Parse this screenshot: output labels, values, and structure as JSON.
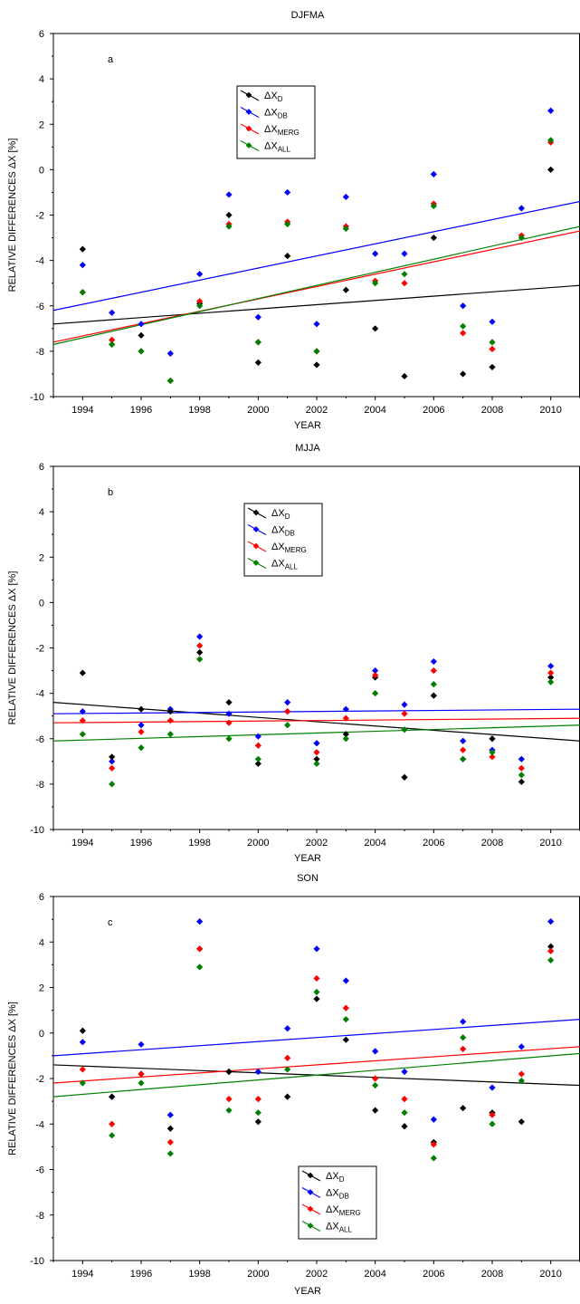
{
  "chart_data": [
    {
      "type": "scatter",
      "title": "DJFMA",
      "panel_label": "a",
      "xlabel": "YEAR",
      "ylabel": "RELATIVE DIFFERENCES ΔX [%]",
      "xlim": [
        1993,
        2011
      ],
      "ylim": [
        -10,
        6
      ],
      "x_ticks": [
        1994,
        1996,
        1998,
        2000,
        2002,
        2004,
        2006,
        2008,
        2010
      ],
      "y_ticks": [
        -10,
        -8,
        -6,
        -4,
        -2,
        0,
        2,
        4,
        6
      ],
      "legend_position": "upper-center",
      "series": [
        {
          "name": "ΔX_D",
          "color": "#000000",
          "x": [
            1994,
            1995,
            1996,
            1997,
            1998,
            1999,
            2000,
            2001,
            2002,
            2003,
            2004,
            2005,
            2006,
            2007,
            2008,
            2010
          ],
          "y": [
            -3.5,
            -7.7,
            -7.3,
            -9.3,
            -5.9,
            -2.0,
            -8.5,
            -3.8,
            -8.6,
            -5.3,
            -7.0,
            -9.1,
            -3.0,
            -9.0,
            -8.7,
            0.0
          ],
          "trend": [
            -6.8,
            -5.1
          ]
        },
        {
          "name": "ΔX_DB",
          "color": "#0000ff",
          "x": [
            1994,
            1995,
            1996,
            1997,
            1998,
            1999,
            2000,
            2001,
            2002,
            2003,
            2004,
            2005,
            2006,
            2007,
            2008,
            2009,
            2010
          ],
          "y": [
            -4.2,
            -6.3,
            -6.8,
            -8.1,
            -4.6,
            -1.1,
            -6.5,
            -1.0,
            -6.8,
            -1.2,
            -3.7,
            -3.7,
            -0.2,
            -6.0,
            -6.7,
            -1.7,
            2.6
          ],
          "trend": [
            -6.2,
            -1.4
          ]
        },
        {
          "name": "ΔX_MERG",
          "color": "#ff0000",
          "x": [
            1994,
            1995,
            1996,
            1997,
            1998,
            1999,
            2000,
            2001,
            2002,
            2003,
            2004,
            2005,
            2006,
            2007,
            2008,
            2009,
            2010
          ],
          "y": [
            -5.4,
            -7.5,
            -8.0,
            -9.3,
            -5.8,
            -2.4,
            -7.6,
            -2.3,
            -8.0,
            -2.5,
            -4.9,
            -5.0,
            -1.5,
            -7.2,
            -7.9,
            -2.9,
            1.2
          ],
          "trend": [
            -7.6,
            -2.7
          ]
        },
        {
          "name": "ΔX_ALL",
          "color": "#008000",
          "x": [
            1994,
            1995,
            1996,
            1997,
            1998,
            1999,
            2000,
            2001,
            2002,
            2003,
            2004,
            2005,
            2006,
            2007,
            2008,
            2009,
            2010
          ],
          "y": [
            -5.4,
            -7.7,
            -8.0,
            -9.3,
            -6.0,
            -2.5,
            -7.6,
            -2.4,
            -8.0,
            -2.6,
            -5.0,
            -4.6,
            -1.6,
            -6.9,
            -7.6,
            -3.0,
            1.3
          ],
          "trend": [
            -7.7,
            -2.5
          ]
        }
      ]
    },
    {
      "type": "scatter",
      "title": "MJJA",
      "panel_label": "b",
      "xlabel": "YEAR",
      "ylabel": "RELATIVE DIFFERENCES ΔX [%]",
      "xlim": [
        1993,
        2011
      ],
      "ylim": [
        -10,
        6
      ],
      "x_ticks": [
        1994,
        1996,
        1998,
        2000,
        2002,
        2004,
        2006,
        2008,
        2010
      ],
      "y_ticks": [
        -10,
        -8,
        -6,
        -4,
        -2,
        0,
        2,
        4,
        6
      ],
      "legend_position": "upper-center",
      "series": [
        {
          "name": "ΔX_D",
          "color": "#000000",
          "x": [
            1994,
            1995,
            1996,
            1997,
            1998,
            1999,
            2000,
            2001,
            2002,
            2003,
            2004,
            2005,
            2006,
            2007,
            2008,
            2009,
            2010
          ],
          "y": [
            -3.1,
            -6.8,
            -4.7,
            -4.8,
            -2.2,
            -4.4,
            -7.1,
            -4.8,
            -6.9,
            -5.8,
            -3.3,
            -7.7,
            -4.1,
            -6.9,
            -6.0,
            -7.9,
            -3.3
          ],
          "trend": [
            -4.4,
            -6.1
          ]
        },
        {
          "name": "ΔX_DB",
          "color": "#0000ff",
          "x": [
            1994,
            1995,
            1996,
            1997,
            1998,
            1999,
            2000,
            2001,
            2002,
            2003,
            2004,
            2005,
            2006,
            2007,
            2008,
            2009,
            2010
          ],
          "y": [
            -4.8,
            -7.0,
            -5.4,
            -4.7,
            -1.5,
            -4.9,
            -5.9,
            -4.4,
            -6.2,
            -4.7,
            -3.0,
            -4.5,
            -2.6,
            -6.1,
            -6.5,
            -6.9,
            -2.8
          ],
          "trend": [
            -4.9,
            -4.7
          ]
        },
        {
          "name": "ΔX_MERG",
          "color": "#ff0000",
          "x": [
            1994,
            1995,
            1996,
            1997,
            1998,
            1999,
            2000,
            2001,
            2002,
            2003,
            2004,
            2005,
            2006,
            2007,
            2008,
            2009,
            2010
          ],
          "y": [
            -5.2,
            -7.3,
            -5.7,
            -5.2,
            -1.9,
            -5.3,
            -6.3,
            -4.8,
            -6.6,
            -5.1,
            -3.2,
            -4.9,
            -3.0,
            -6.5,
            -6.8,
            -7.3,
            -3.1
          ],
          "trend": [
            -5.3,
            -5.1
          ]
        },
        {
          "name": "ΔX_ALL",
          "color": "#008000",
          "x": [
            1994,
            1995,
            1996,
            1997,
            1998,
            1999,
            2000,
            2001,
            2002,
            2003,
            2004,
            2005,
            2006,
            2007,
            2008,
            2009,
            2010
          ],
          "y": [
            -5.8,
            -8.0,
            -6.4,
            -5.8,
            -2.5,
            -6.0,
            -6.9,
            -5.4,
            -7.1,
            -6.0,
            -4.0,
            -5.6,
            -3.6,
            -6.9,
            -6.6,
            -7.6,
            -3.5
          ],
          "trend": [
            -6.1,
            -5.4
          ]
        }
      ]
    },
    {
      "type": "scatter",
      "title": "SON",
      "panel_label": "c",
      "xlabel": "YEAR",
      "ylabel": "RELATIVE DIFFERENCES ΔX [%]",
      "xlim": [
        1993,
        2011
      ],
      "ylim": [
        -10,
        6
      ],
      "x_ticks": [
        1994,
        1996,
        1998,
        2000,
        2002,
        2004,
        2006,
        2008,
        2010
      ],
      "y_ticks": [
        -10,
        -8,
        -6,
        -4,
        -2,
        0,
        2,
        4,
        6
      ],
      "legend_position": "lower-center",
      "series": [
        {
          "name": "ΔX_D",
          "color": "#000000",
          "x": [
            1994,
            1995,
            1996,
            1997,
            1998,
            1999,
            2000,
            2001,
            2002,
            2003,
            2004,
            2005,
            2006,
            2007,
            2008,
            2009,
            2010
          ],
          "y": [
            0.1,
            -2.8,
            -1.8,
            -4.2,
            3.7,
            -1.7,
            -3.9,
            -2.8,
            1.5,
            -0.3,
            -3.4,
            -4.1,
            -4.8,
            -3.3,
            -3.5,
            -3.9,
            3.8
          ],
          "trend": [
            -1.4,
            -2.3
          ]
        },
        {
          "name": "ΔX_DB",
          "color": "#0000ff",
          "x": [
            1994,
            1995,
            1996,
            1997,
            1998,
            1999,
            2000,
            2001,
            2002,
            2003,
            2004,
            2005,
            2006,
            2007,
            2008,
            2009,
            2010
          ],
          "y": [
            -0.4,
            -2.8,
            -0.5,
            -3.6,
            4.9,
            -1.7,
            -1.7,
            0.2,
            3.7,
            2.3,
            -0.8,
            -1.7,
            -3.8,
            0.5,
            -2.4,
            -0.6,
            4.9
          ],
          "trend": [
            -1.0,
            0.6
          ]
        },
        {
          "name": "ΔX_MERG",
          "color": "#ff0000",
          "x": [
            1994,
            1995,
            1996,
            1997,
            1998,
            1999,
            2000,
            2001,
            2002,
            2003,
            2004,
            2005,
            2006,
            2007,
            2008,
            2009,
            2010
          ],
          "y": [
            -1.6,
            -4.0,
            -1.8,
            -4.8,
            3.7,
            -2.9,
            -2.9,
            -1.1,
            2.4,
            1.1,
            -2.0,
            -2.9,
            -4.9,
            -0.7,
            -3.6,
            -1.8,
            3.6
          ],
          "trend": [
            -2.2,
            -0.6
          ]
        },
        {
          "name": "ΔX_ALL",
          "color": "#008000",
          "x": [
            1994,
            1995,
            1996,
            1997,
            1998,
            1999,
            2000,
            2001,
            2002,
            2003,
            2004,
            2005,
            2006,
            2007,
            2008,
            2009,
            2010
          ],
          "y": [
            -2.2,
            -4.5,
            -2.2,
            -5.3,
            2.9,
            -3.4,
            -3.5,
            -1.6,
            1.8,
            0.6,
            -2.3,
            -3.5,
            -5.5,
            -0.2,
            -4.0,
            -2.1,
            3.2
          ],
          "trend": [
            -2.8,
            -0.9
          ]
        }
      ]
    }
  ]
}
